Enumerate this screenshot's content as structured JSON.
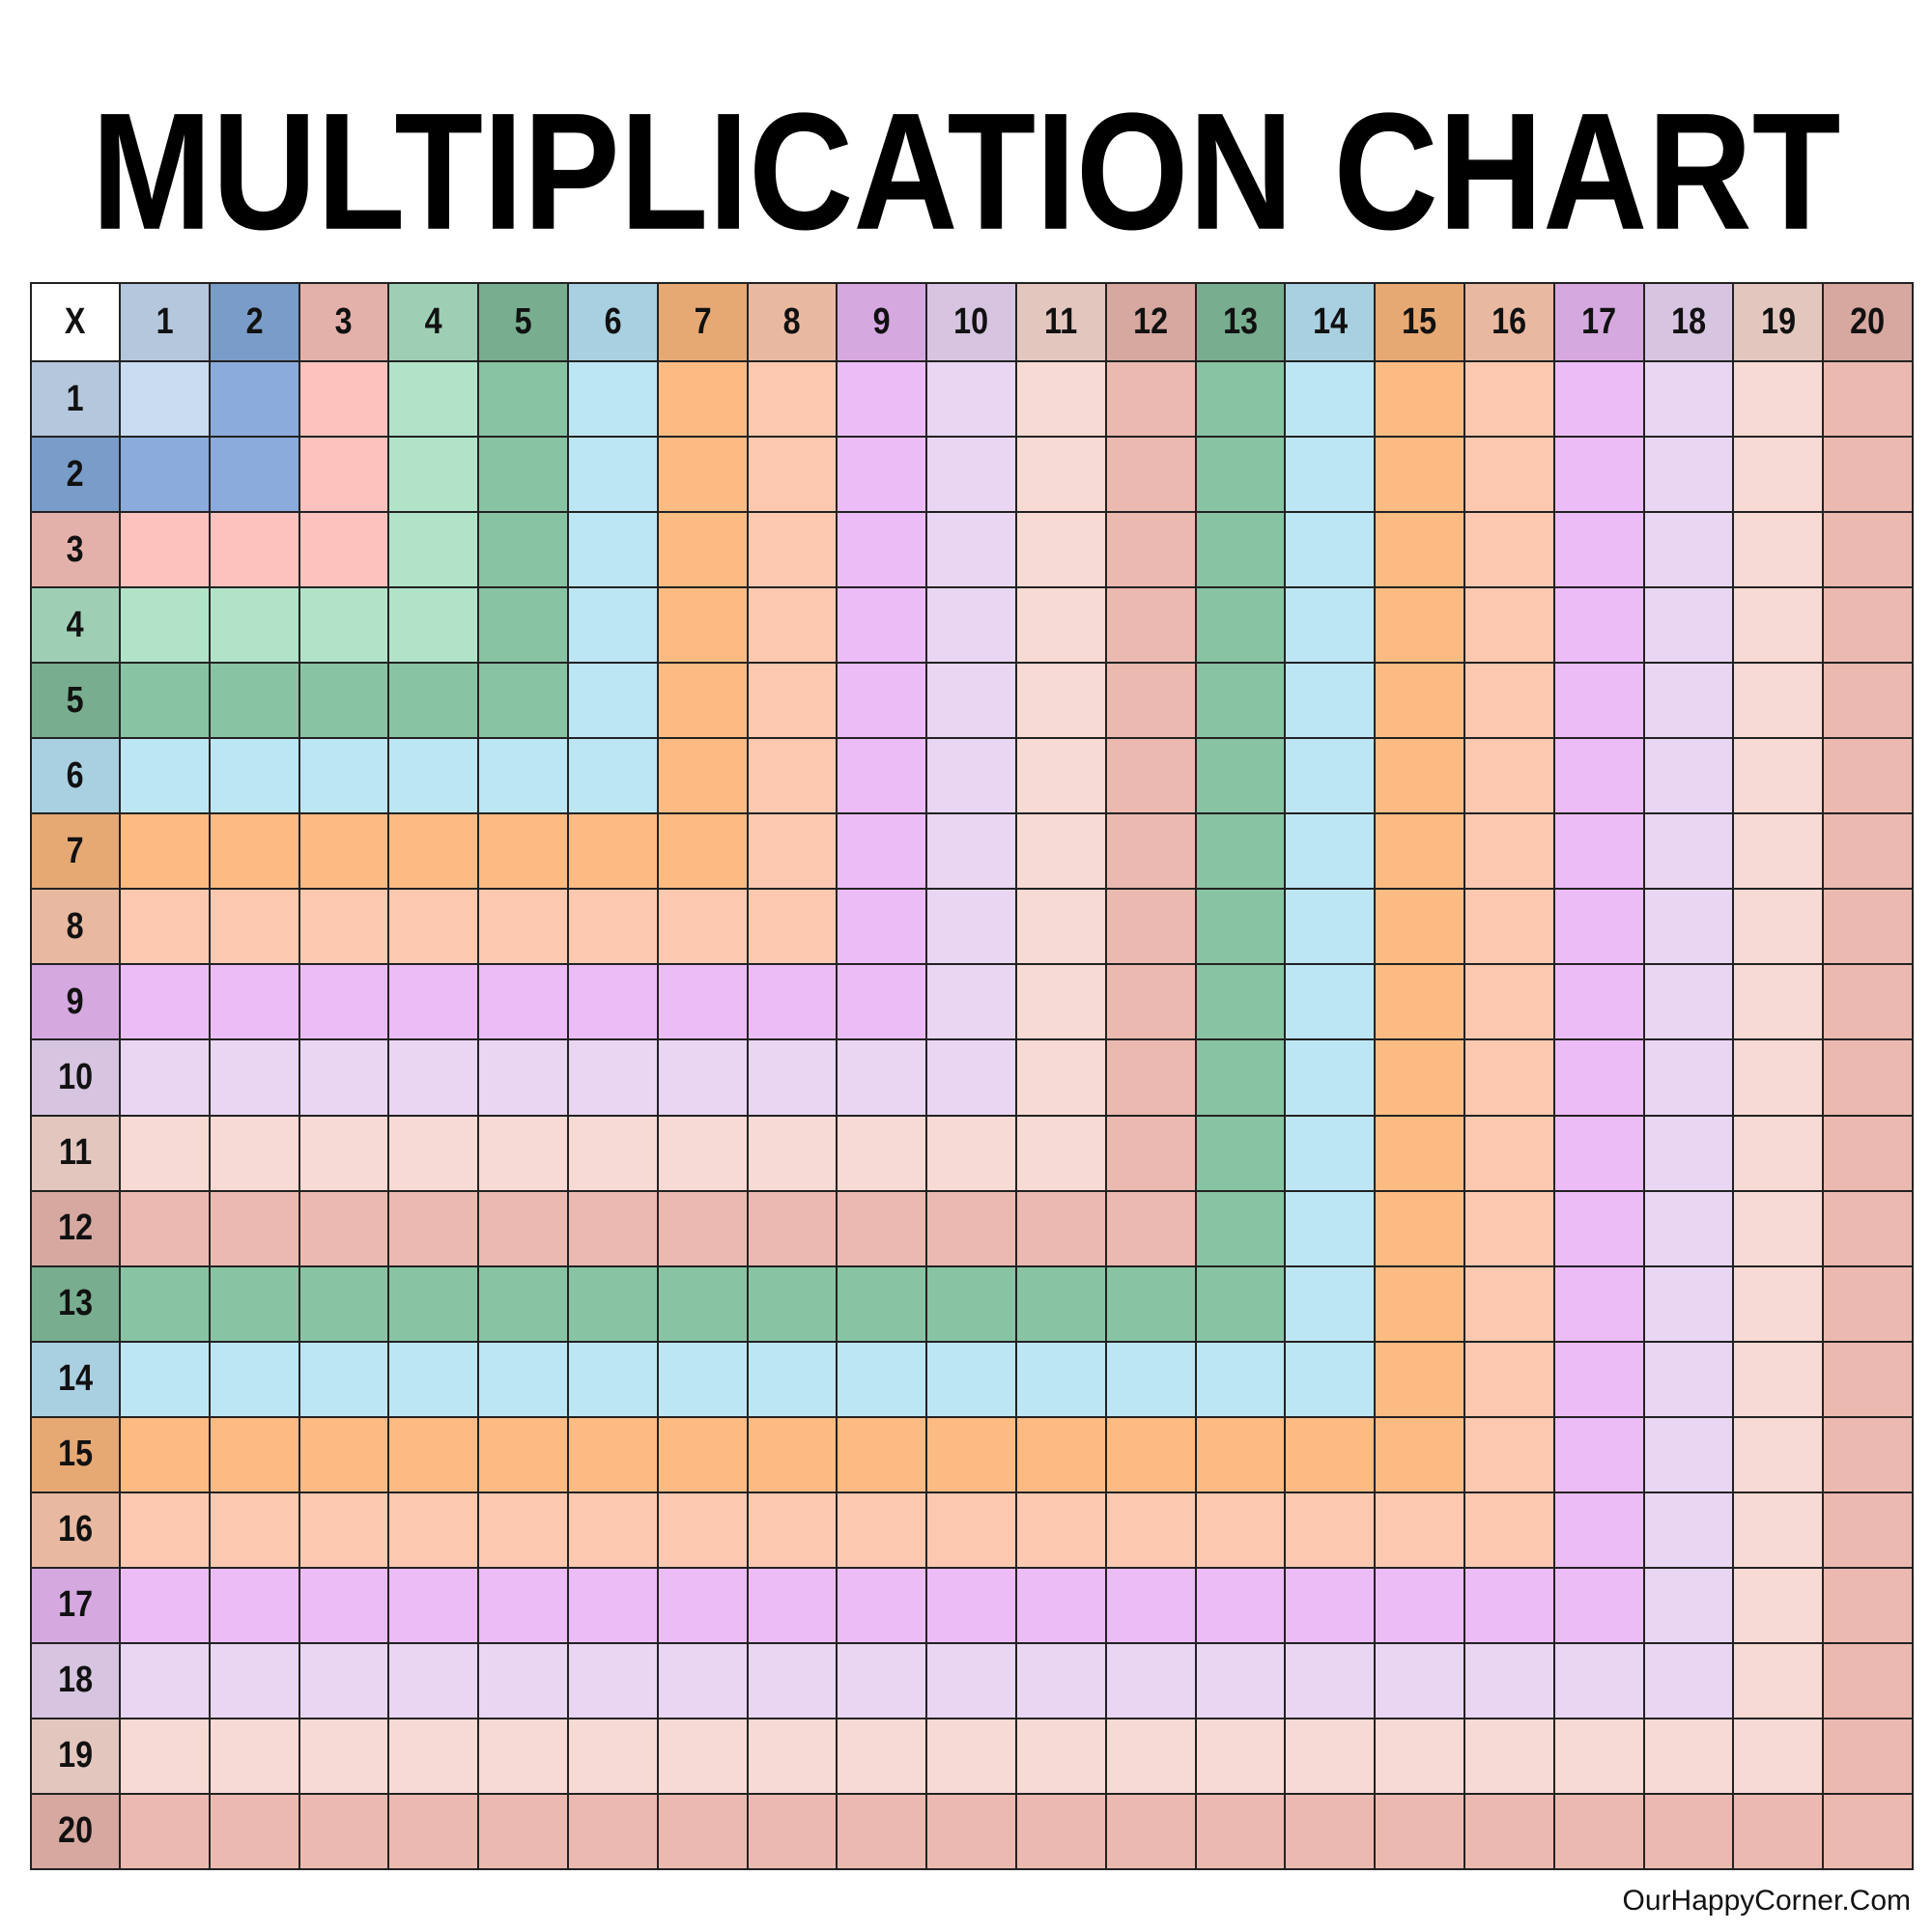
{
  "title": "MULTIPLICATION CHART",
  "footer": "OurHappyCorner.Com",
  "chart_data": {
    "type": "table",
    "title": "MULTIPLICATION CHART",
    "corner_label": "X",
    "column_headers": [
      "1",
      "2",
      "3",
      "4",
      "5",
      "6",
      "7",
      "8",
      "9",
      "10",
      "11",
      "12",
      "13",
      "14",
      "15",
      "16",
      "17",
      "18",
      "19",
      "20"
    ],
    "row_headers": [
      "1",
      "2",
      "3",
      "4",
      "5",
      "6",
      "7",
      "8",
      "9",
      "10",
      "11",
      "12",
      "13",
      "14",
      "15",
      "16",
      "17",
      "18",
      "19",
      "20"
    ],
    "cells": "blank",
    "color_rule": "cell (r,c) takes the color of max(r,c)",
    "header_colors": [
      "#b4c7dc",
      "#7a9cc8",
      "#e4b1aa",
      "#9ecfb5",
      "#78ad90",
      "#a9d0e0",
      "#e6a974",
      "#e8b9a0",
      "#d5a9e0",
      "#d6c4e0",
      "#e3c7bf",
      "#d6a8a0",
      "#78ad90",
      "#a9d0e0",
      "#e6a974",
      "#e8b9a0",
      "#d5a9e0",
      "#d6c4e0",
      "#e3c7bf",
      "#d6a8a0"
    ],
    "cell_colors": [
      "#c9dcf2",
      "#8aabdc",
      "#fdc2bd",
      "#b1e3c8",
      "#88c3a3",
      "#bde6f5",
      "#fcbb82",
      "#fcc9b0",
      "#ecbcf7",
      "#e9d6f2",
      "#f7dad3",
      "#ebb9b0",
      "#88c3a3",
      "#bde6f5",
      "#fcbb82",
      "#fcc9b0",
      "#ecbcf7",
      "#e9d6f2",
      "#f7dad3",
      "#ebb9b0"
    ]
  }
}
